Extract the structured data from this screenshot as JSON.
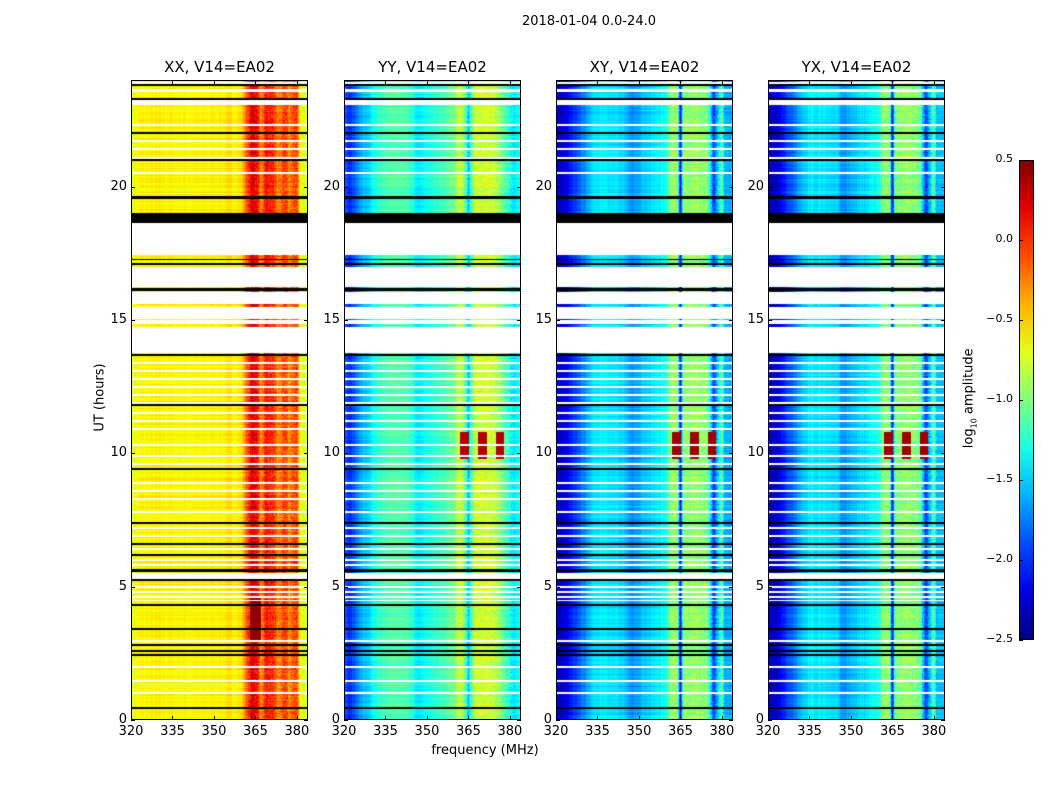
{
  "chart_data": {
    "type": "heatmap",
    "title": "2018-01-04 0.0-24.0",
    "xlabel": "frequency (MHz)",
    "ylabel": "UT (hours)",
    "xlim": [
      320,
      384
    ],
    "ylim": [
      0,
      24
    ],
    "xticks": [
      "320",
      "335",
      "350",
      "365",
      "380"
    ],
    "xtick_values": [
      320,
      335,
      350,
      365,
      380
    ],
    "yticks": [
      "0",
      "5",
      "10",
      "15",
      "20"
    ],
    "ytick_values": [
      0,
      5,
      10,
      15,
      20
    ],
    "colormap": "jet",
    "colorbar": {
      "label_main": "log",
      "label_sub": "10",
      "label_rest": " amplitude",
      "range": [
        -2.5,
        0.5
      ],
      "ticks": [
        "0.5",
        "0.0",
        "−0.5",
        "−1.0",
        "−1.5",
        "−2.0",
        "−2.5"
      ],
      "tick_values": [
        0.5,
        0.0,
        -0.5,
        -1.0,
        -1.5,
        -2.0,
        -2.5
      ]
    },
    "panels": [
      {
        "title": "XX, V14=EA02",
        "profile_freq": [
          320,
          323,
          330,
          345,
          360,
          362,
          364,
          366,
          367,
          369,
          372,
          373,
          376,
          377,
          380,
          381,
          384
        ],
        "profile_val": [
          -0.72,
          -0.62,
          -0.6,
          -0.62,
          -0.55,
          -0.1,
          0.25,
          0.05,
          -0.3,
          0.1,
          -0.05,
          -0.35,
          0.0,
          -0.3,
          0.0,
          -0.7,
          -0.7
        ],
        "hot_band": {
          "hours": [
            3.0,
            4.6
          ],
          "freq": [
            363,
            367
          ],
          "value": 0.45
        }
      },
      {
        "title": "YY, V14=EA02",
        "profile_freq": [
          320,
          322,
          326,
          333,
          338,
          345,
          346,
          360,
          362,
          364,
          365,
          367,
          370,
          375,
          378,
          381,
          384
        ],
        "profile_val": [
          -1.9,
          -2.0,
          -1.65,
          -1.2,
          -1.1,
          -1.2,
          -1.45,
          -1.05,
          -0.7,
          -1.1,
          -1.55,
          -0.8,
          -0.75,
          -0.8,
          -1.1,
          -1.4,
          -1.4
        ],
        "hot_band": {
          "hours": [
            9.8,
            10.8
          ],
          "freq": [
            362,
            381
          ],
          "value": 0.35
        }
      },
      {
        "title": "XY, V14=EA02",
        "profile_freq": [
          320,
          322,
          326,
          330,
          335,
          345,
          347,
          360,
          362,
          364,
          365,
          366,
          370,
          375,
          377,
          380,
          381,
          384
        ],
        "profile_val": [
          -2.2,
          -2.35,
          -2.0,
          -1.75,
          -1.4,
          -1.5,
          -1.7,
          -1.3,
          -0.9,
          -1.0,
          -2.2,
          -1.0,
          -0.9,
          -1.0,
          -2.0,
          -1.1,
          -1.6,
          -1.6
        ],
        "hot_band": {
          "hours": [
            9.8,
            10.8
          ],
          "freq": [
            362,
            381
          ],
          "value": 0.4
        }
      },
      {
        "title": "YX, V14=EA02",
        "profile_freq": [
          320,
          322,
          326,
          330,
          335,
          345,
          347,
          360,
          362,
          364,
          365,
          366,
          370,
          375,
          377,
          380,
          381,
          384
        ],
        "profile_val": [
          -2.25,
          -2.35,
          -2.0,
          -1.75,
          -1.4,
          -1.5,
          -1.7,
          -1.3,
          -0.9,
          -1.0,
          -2.2,
          -1.0,
          -0.9,
          -1.0,
          -2.0,
          -1.1,
          -1.6,
          -1.6
        ],
        "hot_band": {
          "hours": [
            9.8,
            10.8
          ],
          "freq": [
            362,
            381
          ],
          "value": 0.4
        }
      }
    ],
    "flagged_white_hours": [
      [
        13.75,
        14.75
      ],
      [
        14.85,
        15.0
      ],
      [
        15.05,
        15.5
      ],
      [
        15.6,
        16.05
      ],
      [
        16.25,
        17.0
      ],
      [
        17.45,
        18.65
      ],
      [
        21.0,
        21.1
      ],
      [
        23.05,
        23.25
      ],
      [
        23.55,
        23.65
      ],
      [
        5.3,
        5.5
      ],
      [
        4.75,
        4.85
      ],
      [
        4.45,
        4.5
      ]
    ],
    "flagged_black_hours": [
      [
        18.65,
        19.0
      ],
      [
        19.55,
        19.65
      ],
      [
        5.2,
        5.3
      ],
      [
        5.55,
        5.65
      ],
      [
        17.05,
        17.15
      ],
      [
        17.25,
        17.3
      ],
      [
        16.1,
        16.2
      ]
    ],
    "black_line_hours": [
      0.45,
      2.45,
      2.6,
      2.8,
      3.4,
      4.3,
      6.2,
      6.6,
      7.4,
      9.4,
      11.8,
      13.7,
      21.0,
      22.0,
      23.3,
      23.8
    ],
    "white_line_hours": [
      1.0,
      1.45,
      2.0,
      2.95,
      4.6,
      5.0,
      5.8,
      6.0,
      6.4,
      6.9,
      7.2,
      7.8,
      8.3,
      8.6,
      8.9,
      9.6,
      9.9,
      10.3,
      10.9,
      11.2,
      11.5,
      11.9,
      12.2,
      12.5,
      12.8,
      13.1,
      13.4,
      20.5,
      21.4,
      21.7,
      22.3,
      23.9
    ]
  }
}
